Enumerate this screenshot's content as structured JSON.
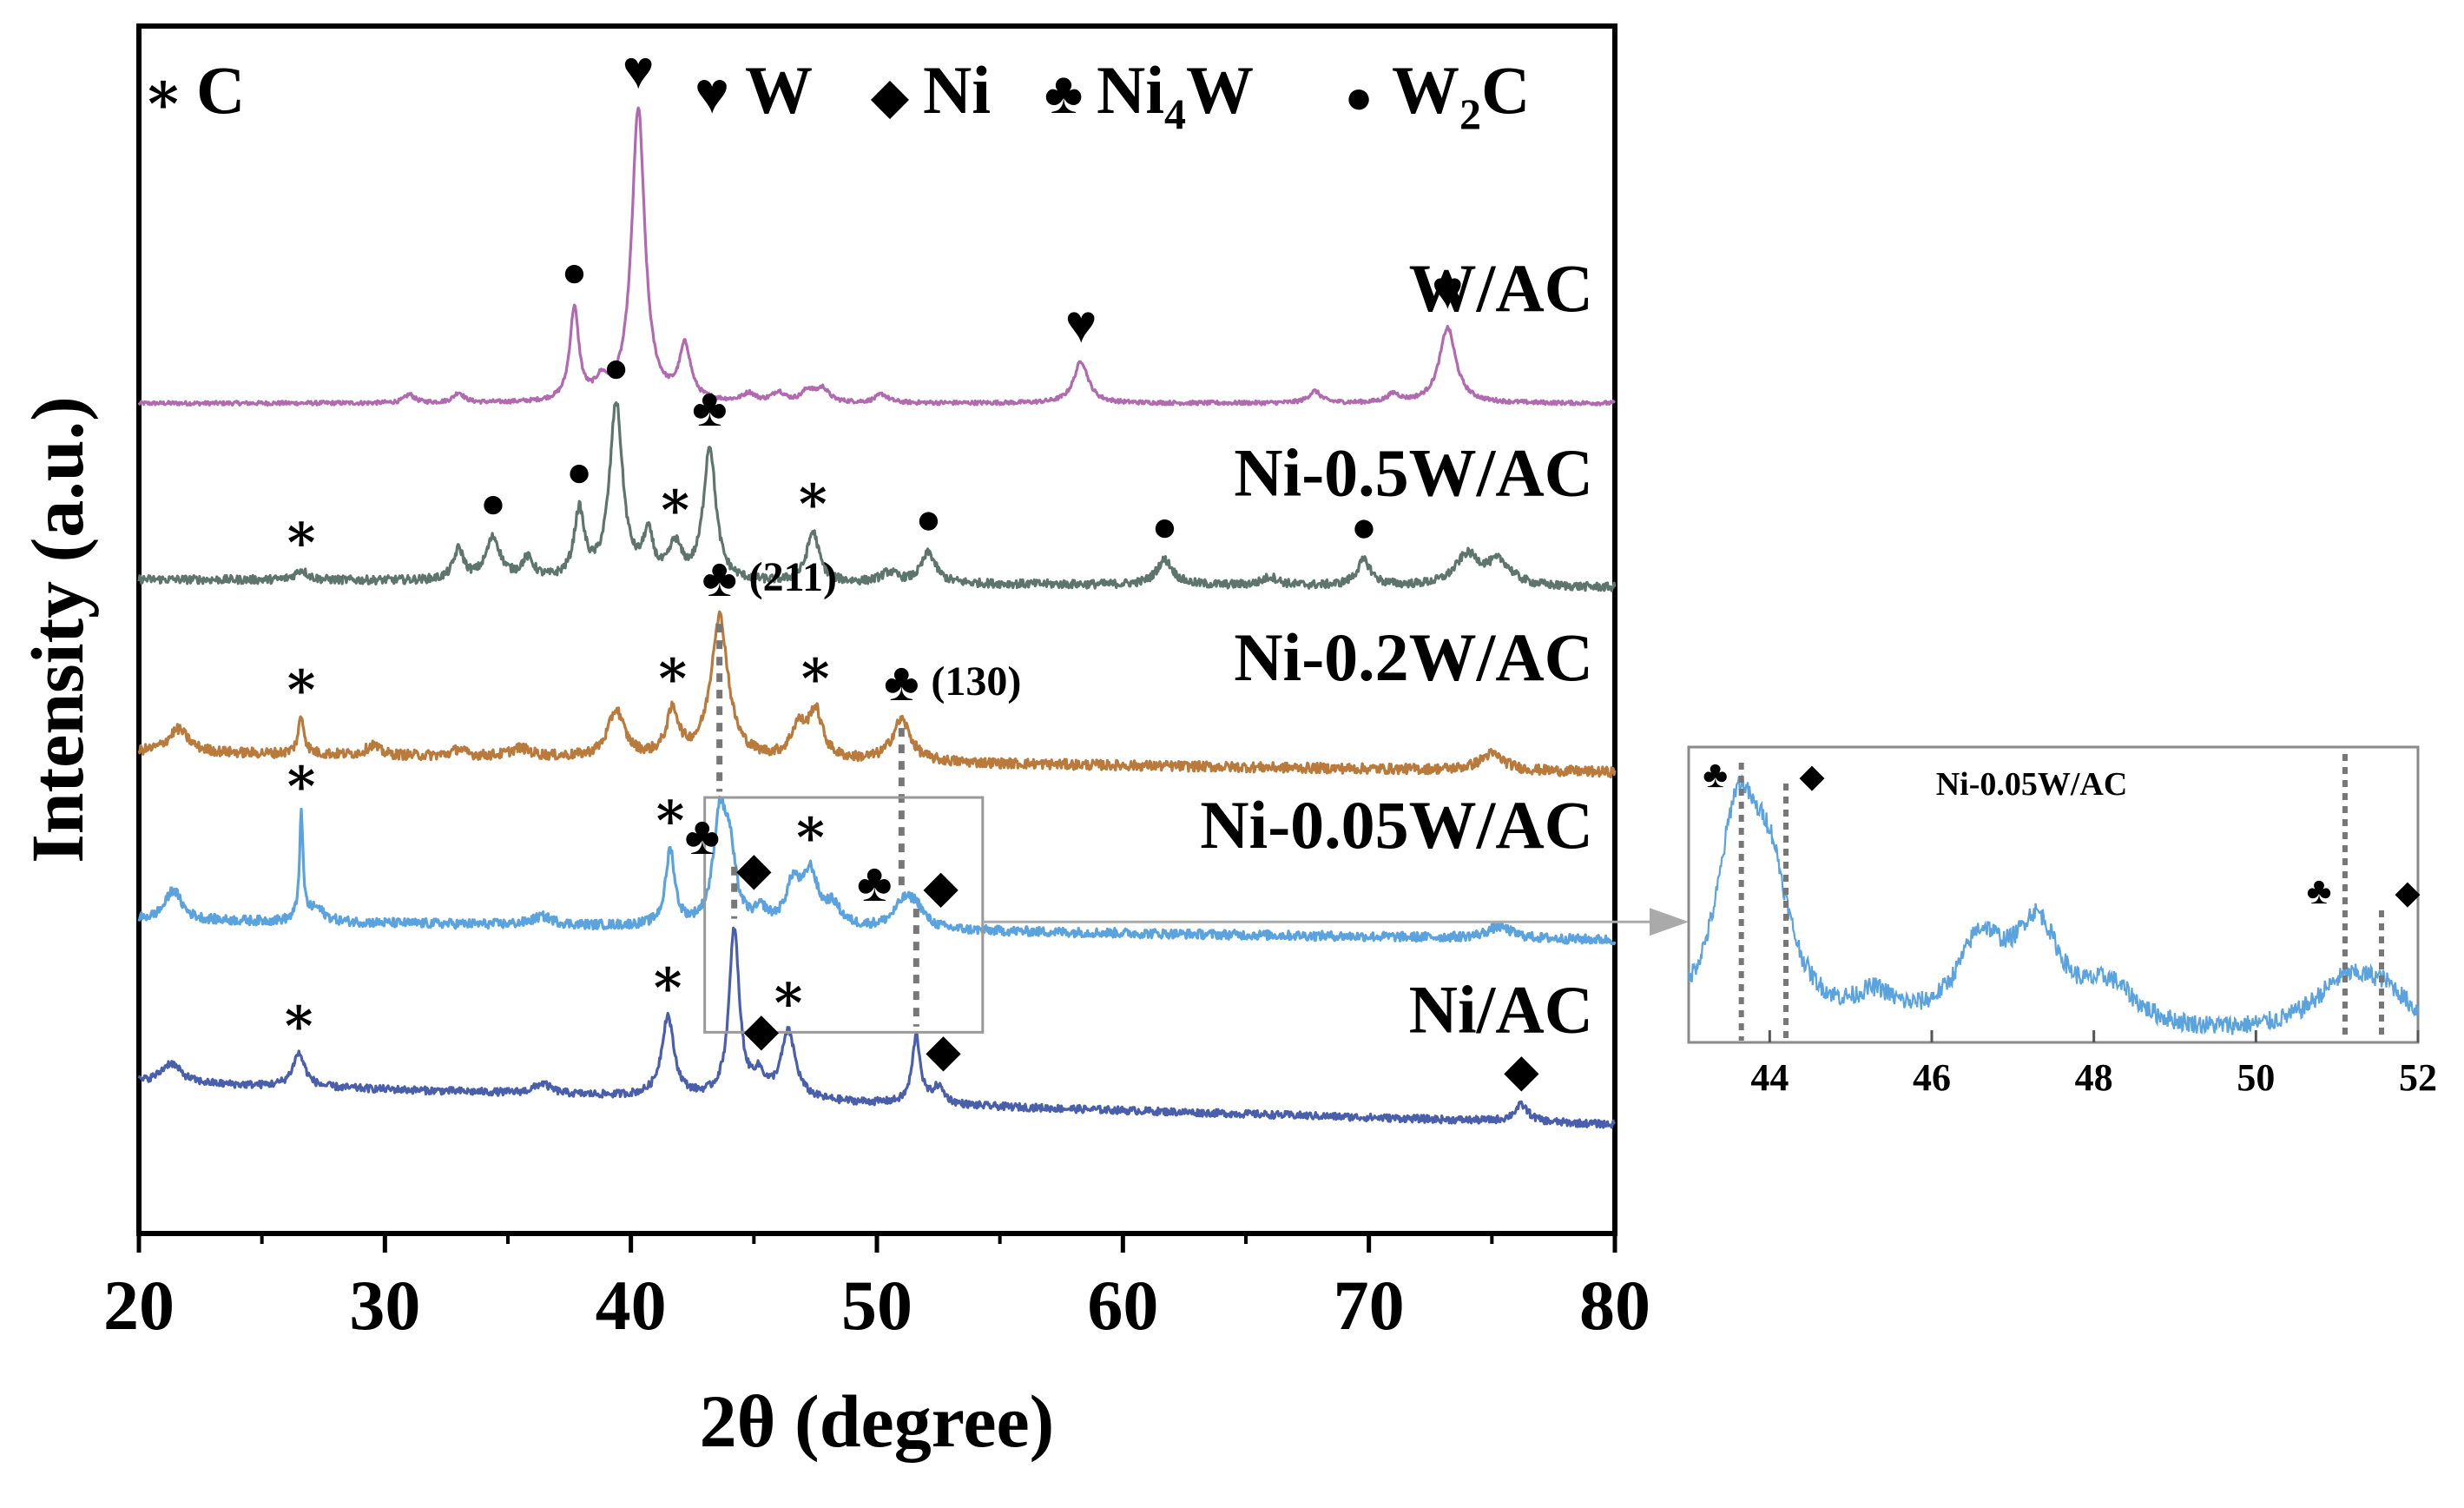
{
  "chart_data": [
    {
      "type": "line",
      "title": "",
      "xlabel": "2θ (degree)",
      "ylabel": "Intensity (a.u.)",
      "xlim": [
        20,
        80
      ],
      "x_ticks": [
        20,
        30,
        40,
        50,
        60,
        70,
        80
      ],
      "x_tick_labels": [
        "20",
        "30",
        "40",
        "50",
        "60",
        "70",
        "80"
      ],
      "grid": false,
      "legend": [
        {
          "symbol": "∗",
          "label": "C"
        },
        {
          "symbol": "♥",
          "label": "W"
        },
        {
          "symbol": "◆",
          "label": "Ni"
        },
        {
          "symbol": "♣",
          "label": "Ni",
          "subscript": "4",
          "suffix": "W"
        },
        {
          "symbol": "●",
          "label": "W",
          "subscript": "2",
          "suffix": "C"
        }
      ],
      "series": [
        {
          "name": "W/AC",
          "color": "#B169B0",
          "offset": 4.3,
          "noise": 0.012,
          "baseline": [
            0.0,
            0.0
          ],
          "peaks": [
            [
              31.0,
              0.05,
              0.25
            ],
            [
              33.0,
              0.06,
              0.25
            ],
            [
              37.7,
              0.55,
              0.22
            ],
            [
              38.8,
              0.1,
              0.3
            ],
            [
              40.3,
              1.75,
              0.32
            ],
            [
              42.2,
              0.32,
              0.28
            ],
            [
              44.8,
              0.05,
              0.3
            ],
            [
              46.0,
              0.06,
              0.3
            ],
            [
              47.2,
              0.07,
              0.3
            ],
            [
              47.8,
              0.08,
              0.3
            ],
            [
              50.2,
              0.05,
              0.3
            ],
            [
              58.3,
              0.25,
              0.35
            ],
            [
              67.8,
              0.07,
              0.3
            ],
            [
              71.0,
              0.05,
              0.3
            ],
            [
              73.2,
              0.45,
              0.4
            ]
          ]
        },
        {
          "name": "Ni-0.5W/AC",
          "color": "#5E756D",
          "offset": 3.2,
          "noise": 0.025,
          "baseline": [
            0.05,
            0.0
          ],
          "peaks": [
            [
              26.6,
              0.06,
              0.3
            ],
            [
              33.0,
              0.18,
              0.25
            ],
            [
              34.4,
              0.25,
              0.35
            ],
            [
              35.8,
              0.12,
              0.3
            ],
            [
              37.9,
              0.4,
              0.25
            ],
            [
              39.4,
              1.05,
              0.32
            ],
            [
              40.7,
              0.25,
              0.25
            ],
            [
              41.8,
              0.2,
              0.3
            ],
            [
              43.2,
              0.8,
              0.3
            ],
            [
              47.4,
              0.3,
              0.3
            ],
            [
              50.5,
              0.06,
              0.4
            ],
            [
              52.1,
              0.18,
              0.35
            ],
            [
              61.7,
              0.15,
              0.4
            ],
            [
              66.0,
              0.05,
              0.4
            ],
            [
              69.8,
              0.15,
              0.35
            ],
            [
              74.0,
              0.18,
              0.6
            ],
            [
              75.3,
              0.14,
              0.6
            ]
          ]
        },
        {
          "name": "Ni-0.2W/AC",
          "color": "#B97A3C",
          "offset": 2.1,
          "noise": 0.03,
          "baseline": [
            0.12,
            0.0
          ],
          "peaks": [
            [
              21.6,
              0.14,
              0.5
            ],
            [
              26.6,
              0.22,
              0.15
            ],
            [
              29.5,
              0.06,
              0.3
            ],
            [
              33.0,
              0.04,
              0.3
            ],
            [
              35.5,
              0.05,
              0.5
            ],
            [
              39.4,
              0.28,
              0.4
            ],
            [
              41.7,
              0.27,
              0.3
            ],
            [
              43.6,
              0.85,
              0.42
            ],
            [
              46.8,
              0.18,
              0.35
            ],
            [
              47.5,
              0.28,
              0.35
            ],
            [
              51.0,
              0.25,
              0.45
            ],
            [
              75.0,
              0.1,
              0.6
            ]
          ]
        },
        {
          "name": "Ni-0.05W/AC",
          "color": "#5AA3DF",
          "offset": 1.1,
          "noise": 0.028,
          "baseline": [
            0.12,
            0.0
          ],
          "peaks": [
            [
              21.4,
              0.18,
              0.4
            ],
            [
              26.6,
              0.62,
              0.09
            ],
            [
              27.2,
              0.08,
              0.4
            ],
            [
              36.4,
              0.05,
              0.5
            ],
            [
              41.6,
              0.45,
              0.22
            ],
            [
              43.6,
              0.6,
              0.3
            ],
            [
              44.0,
              0.4,
              0.3
            ],
            [
              45.3,
              0.08,
              0.3
            ],
            [
              46.6,
              0.25,
              0.35
            ],
            [
              47.3,
              0.3,
              0.35
            ],
            [
              48.2,
              0.12,
              0.4
            ],
            [
              51.1,
              0.15,
              0.5
            ],
            [
              51.6,
              0.1,
              0.4
            ],
            [
              75.3,
              0.07,
              0.6
            ]
          ]
        },
        {
          "name": "Ni/AC",
          "color": "#4A5FAC",
          "offset": 0.0,
          "noise": 0.022,
          "baseline": [
            0.25,
            0.0
          ],
          "peaks": [
            [
              21.3,
              0.12,
              0.5
            ],
            [
              26.5,
              0.2,
              0.3
            ],
            [
              36.4,
              0.06,
              0.4
            ],
            [
              41.5,
              0.48,
              0.3
            ],
            [
              44.2,
              1.0,
              0.25
            ],
            [
              45.2,
              0.12,
              0.3
            ],
            [
              46.4,
              0.4,
              0.35
            ],
            [
              51.6,
              0.4,
              0.2
            ],
            [
              52.5,
              0.1,
              0.3
            ],
            [
              76.2,
              0.1,
              0.35
            ]
          ]
        }
      ],
      "series_labels": [
        "W/AC",
        "Ni-0.5W/AC",
        "Ni-0.2W/AC",
        "Ni-0.05W/AC",
        "Ni/AC"
      ],
      "annotations": [
        {
          "series": "W/AC",
          "x": 37.7,
          "symbol": "●"
        },
        {
          "series": "W/AC",
          "x": 40.3,
          "symbol": "♥"
        },
        {
          "series": "W/AC",
          "x": 58.3,
          "symbol": "♥"
        },
        {
          "series": "W/AC",
          "x": 73.2,
          "symbol": "♥"
        },
        {
          "series": "Ni-0.5W/AC",
          "x": 26.6,
          "symbol": "∗"
        },
        {
          "series": "Ni-0.5W/AC",
          "x": 34.4,
          "symbol": "●"
        },
        {
          "series": "Ni-0.5W/AC",
          "x": 37.9,
          "symbol": "●"
        },
        {
          "series": "Ni-0.5W/AC",
          "x": 39.4,
          "symbol": "●"
        },
        {
          "series": "Ni-0.5W/AC",
          "x": 41.8,
          "symbol": "∗"
        },
        {
          "series": "Ni-0.5W/AC",
          "x": 43.2,
          "symbol": "♣"
        },
        {
          "series": "Ni-0.5W/AC",
          "x": 47.4,
          "symbol": "∗"
        },
        {
          "series": "Ni-0.5W/AC",
          "x": 52.1,
          "symbol": "●"
        },
        {
          "series": "Ni-0.5W/AC",
          "x": 61.7,
          "symbol": "●"
        },
        {
          "series": "Ni-0.5W/AC",
          "x": 69.8,
          "symbol": "●"
        },
        {
          "series": "Ni-0.2W/AC",
          "x": 26.6,
          "symbol": "∗"
        },
        {
          "series": "Ni-0.2W/AC",
          "x": 41.7,
          "symbol": "∗"
        },
        {
          "series": "Ni-0.2W/AC",
          "x": 43.6,
          "symbol": "♣",
          "text": "(211)"
        },
        {
          "series": "Ni-0.2W/AC",
          "x": 47.5,
          "symbol": "∗"
        },
        {
          "series": "Ni-0.2W/AC",
          "x": 51.0,
          "symbol": "♣",
          "text": "(130)"
        },
        {
          "series": "Ni-0.05W/AC",
          "x": 26.6,
          "symbol": "∗"
        },
        {
          "series": "Ni-0.05W/AC",
          "x": 41.6,
          "symbol": "∗"
        },
        {
          "series": "Ni-0.05W/AC",
          "x": 42.9,
          "symbol": "♣"
        },
        {
          "series": "Ni-0.05W/AC",
          "x": 45.0,
          "symbol": "◆"
        },
        {
          "series": "Ni-0.05W/AC",
          "x": 47.3,
          "symbol": "∗"
        },
        {
          "series": "Ni-0.05W/AC",
          "x": 49.9,
          "symbol": "♣"
        },
        {
          "series": "Ni-0.05W/AC",
          "x": 52.6,
          "symbol": "◆"
        },
        {
          "series": "Ni/AC",
          "x": 26.5,
          "symbol": "∗"
        },
        {
          "series": "Ni/AC",
          "x": 41.5,
          "symbol": "∗"
        },
        {
          "series": "Ni/AC",
          "x": 45.3,
          "symbol": "◆"
        },
        {
          "series": "Ni/AC",
          "x": 46.4,
          "symbol": "∗"
        },
        {
          "series": "Ni/AC",
          "x": 52.7,
          "symbol": "◆"
        },
        {
          "series": "Ni/AC",
          "x": 76.2,
          "symbol": "◆"
        }
      ],
      "reference_lines": [
        43.6,
        44.2,
        51.0,
        51.6
      ],
      "zoom_box": {
        "xmin": 43.0,
        "xmax": 54.3
      }
    },
    {
      "type": "line",
      "title": "Ni-0.05W/AC",
      "source_series": "Ni-0.05W/AC",
      "xlabel": "",
      "ylabel": "",
      "xlim": [
        43,
        52
      ],
      "x_ticks": [
        44,
        46,
        48,
        50,
        52
      ],
      "x_tick_labels": [
        "44",
        "46",
        "48",
        "50",
        "52"
      ],
      "grid": false,
      "reference_lines": [
        {
          "x": 43.65,
          "symbol": "♣"
        },
        {
          "x": 44.2,
          "symbol": "◆"
        },
        {
          "x": 51.1,
          "symbol": "♣"
        },
        {
          "x": 51.55,
          "symbol": "◆"
        }
      ]
    }
  ]
}
